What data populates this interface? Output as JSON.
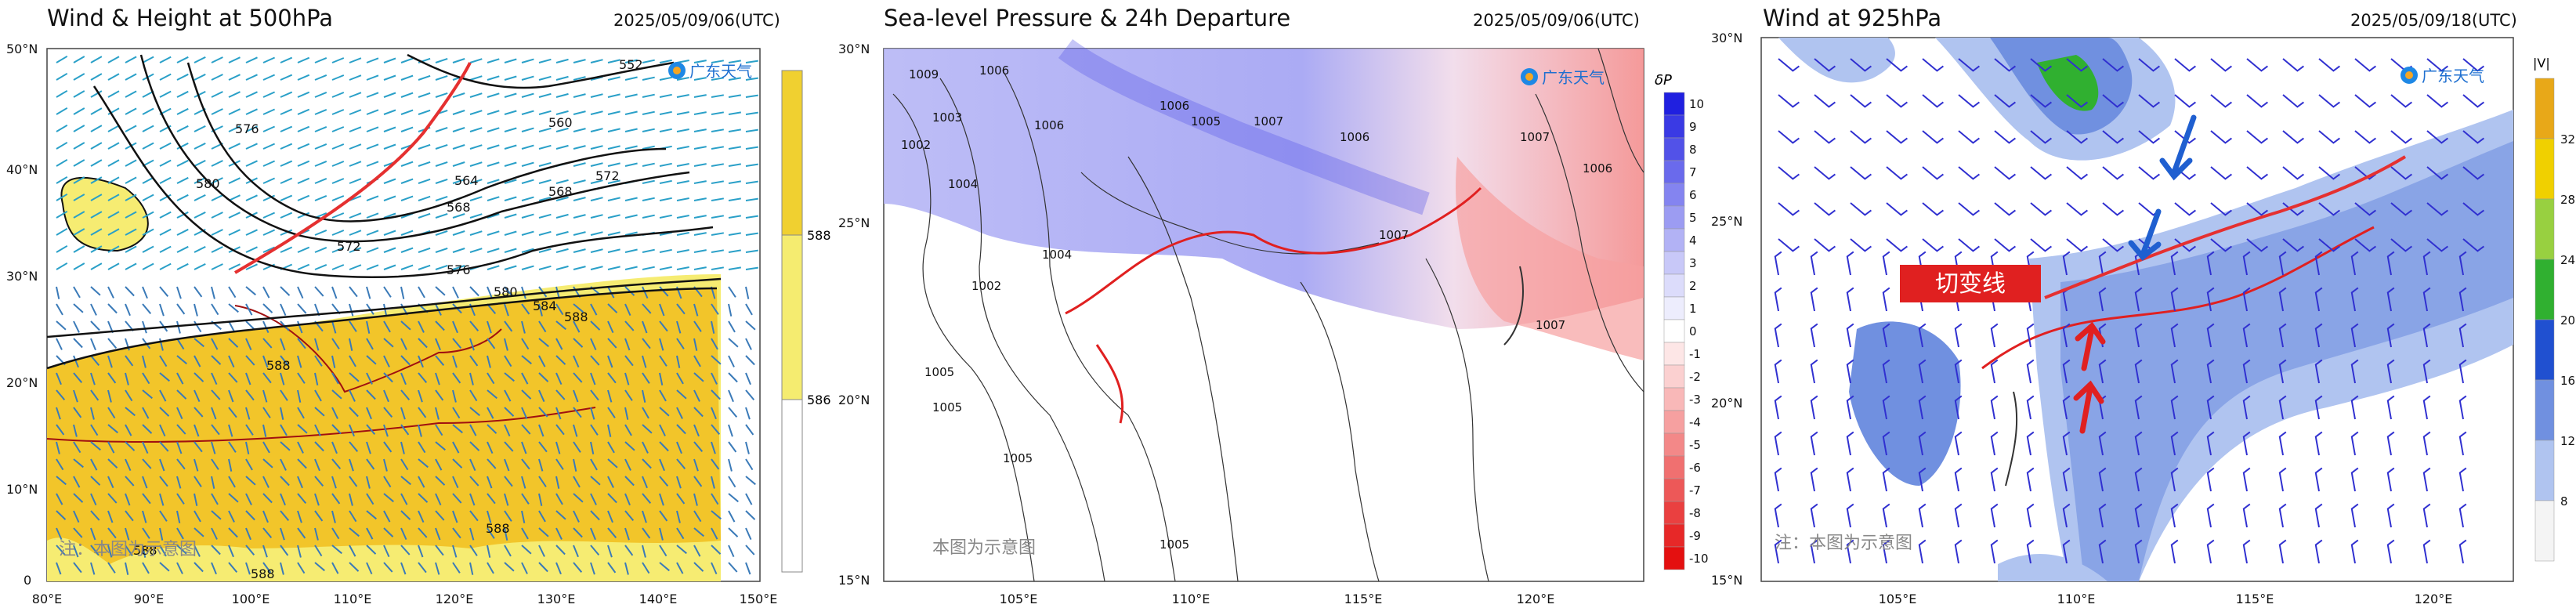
{
  "panels": [
    {
      "title": "Wind & Height at 500hPa",
      "datetime": "2025/05/09/06(UTC)",
      "logo_text": "广东天气",
      "watermark": "注：本图为示意图",
      "lat_labels": [
        "50°N",
        "40°N",
        "30°N",
        "20°N",
        "10°N",
        "0"
      ],
      "lon_labels": [
        "80°E",
        "90°E",
        "100°E",
        "110°E",
        "120°E",
        "130°E",
        "140°E",
        "150°E"
      ],
      "contour_labels": [
        "552",
        "560",
        "576",
        "572",
        "568",
        "580",
        "564",
        "572",
        "568",
        "576",
        "580",
        "584",
        "588",
        "588",
        "588",
        "588",
        "588"
      ],
      "colorbar_labels": [
        "588",
        "586"
      ],
      "colorbar_colors": [
        "#f0d030",
        "#f5ec70",
        "#ffffff"
      ],
      "shear_line_color": "#e53030"
    },
    {
      "title": "Sea-level Pressure & 24h Departure",
      "datetime": "2025/05/09/06(UTC)",
      "logo_text": "广东天气",
      "watermark": "本图为示意图",
      "lat_labels": [
        "30°N",
        "25°N",
        "20°N",
        "15°N"
      ],
      "lon_labels": [
        "105°E",
        "110°E",
        "115°E",
        "120°E"
      ],
      "contour_labels": [
        "1009",
        "1006",
        "1003",
        "1006",
        "1006",
        "1005",
        "1007",
        "1002",
        "1006",
        "1007",
        "1004",
        "1004",
        "1002",
        "1006",
        "1005",
        "1005",
        "1005",
        "1007",
        "1007",
        "1005"
      ],
      "colorbar_title": "δP",
      "colorbar_labels": [
        "10",
        "9",
        "8",
        "7",
        "6",
        "5",
        "4",
        "3",
        "2",
        "1",
        "0",
        "-1",
        "-2",
        "-3",
        "-4",
        "-5",
        "-6",
        "-7",
        "-8",
        "-9",
        "-10"
      ],
      "colorbar_colors": [
        "#2020e0",
        "#3a3ae4",
        "#5252e8",
        "#6a6aec",
        "#8484f0",
        "#9c9cf2",
        "#b2b2f5",
        "#c8c8f8",
        "#dcdcfb",
        "#ededfd",
        "#ffffff",
        "#fde6e6",
        "#fbd0d0",
        "#f9b8b8",
        "#f6a0a0",
        "#f38888",
        "#f07070",
        "#ed5858",
        "#ea4040",
        "#e72828",
        "#e41010"
      ]
    },
    {
      "title": "Wind at 925hPa",
      "datetime": "2025/05/09/18(UTC)",
      "logo_text": "广东天气",
      "watermark": "注：本图为示意图",
      "shear_label": "切变线",
      "lat_labels": [
        "30°N",
        "25°N",
        "20°N",
        "15°N"
      ],
      "lon_labels": [
        "105°E",
        "110°E",
        "115°E",
        "120°E"
      ],
      "colorbar_title": "|V|",
      "colorbar_labels": [
        "32",
        "28",
        "24",
        "20",
        "16",
        "12",
        "8"
      ],
      "colorbar_colors": [
        "#e8a818",
        "#f0d000",
        "#98d040",
        "#30b030",
        "#2050d0",
        "#7090e0",
        "#b0c4f0",
        "#f4f4f4"
      ]
    }
  ]
}
